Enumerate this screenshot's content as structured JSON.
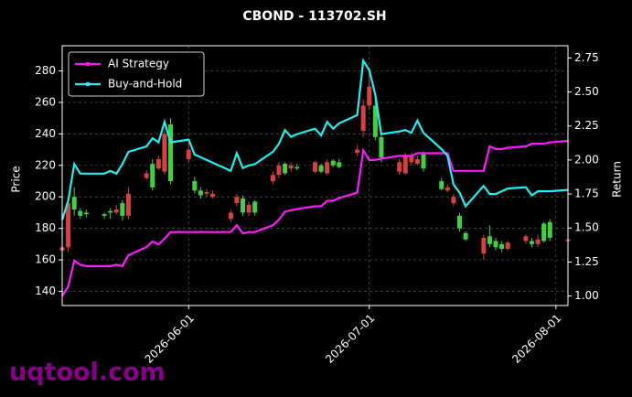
{
  "chart_data": {
    "type": "candlestick",
    "title": "CBOND - 113702.SH",
    "ylabel": "Price",
    "y2label": "Return",
    "watermark": "uqtool.com",
    "up_color": "#3fd13f",
    "down_color": "#d94040",
    "grid": true,
    "legend": "upper left",
    "x": [
      "2026-05-11",
      "2026-05-12",
      "2026-05-13",
      "2026-05-14",
      "2026-05-15",
      "2026-05-18",
      "2026-05-19",
      "2026-05-20",
      "2026-05-21",
      "2026-05-22",
      "2026-05-25",
      "2026-05-26",
      "2026-05-27",
      "2026-05-28",
      "2026-05-29",
      "2026-06-01",
      "2026-06-02",
      "2026-06-03",
      "2026-06-04",
      "2026-06-05",
      "2026-06-08",
      "2026-06-09",
      "2026-06-10",
      "2026-06-11",
      "2026-06-12",
      "2026-06-15",
      "2026-06-16",
      "2026-06-17",
      "2026-06-18",
      "2026-06-19",
      "2026-06-22",
      "2026-06-23",
      "2026-06-24",
      "2026-06-25",
      "2026-06-26",
      "2026-06-29",
      "2026-06-30",
      "2026-07-01",
      "2026-07-02",
      "2026-07-03",
      "2026-07-06",
      "2026-07-07",
      "2026-07-08",
      "2026-07-09",
      "2026-07-10",
      "2026-07-13",
      "2026-07-14",
      "2026-07-15",
      "2026-07-16",
      "2026-07-17",
      "2026-07-20",
      "2026-07-21",
      "2026-07-22",
      "2026-07-23",
      "2026-07-24",
      "2026-07-27",
      "2026-07-28",
      "2026-07-29",
      "2026-07-30",
      "2026-07-31",
      "2026-08-03"
    ],
    "open": [
      168,
      196,
      192,
      188,
      189,
      188,
      190,
      192,
      188,
      202,
      215,
      206,
      224,
      240,
      210,
      230,
      204,
      201,
      203,
      202,
      190,
      200,
      190,
      195,
      190,
      214,
      220,
      215,
      220,
      218,
      222,
      216,
      222,
      220,
      219,
      230,
      258,
      270,
      238,
      225,
      222,
      226,
      226,
      224,
      218,
      205,
      206,
      200,
      180,
      173,
      174,
      170,
      168,
      167,
      171,
      175,
      170,
      173,
      172,
      174,
      173
    ],
    "high": [
      171,
      198,
      206,
      193,
      192,
      190,
      193,
      195,
      198,
      206,
      217,
      224,
      226,
      242,
      250,
      235,
      213,
      206,
      205,
      204,
      192,
      202,
      201,
      197,
      198,
      216,
      222,
      222,
      222,
      221,
      223,
      221,
      224,
      224,
      224,
      233,
      262,
      282,
      262,
      240,
      224,
      228,
      228,
      226,
      229,
      212,
      208,
      202,
      190,
      178,
      176,
      182,
      174,
      172,
      172,
      176,
      174,
      176,
      184,
      186,
      174
    ],
    "low": [
      164,
      165,
      188,
      186,
      187,
      186,
      186,
      189,
      185,
      186,
      211,
      204,
      217,
      214,
      208,
      222,
      202,
      199,
      200,
      199,
      184,
      194,
      188,
      188,
      188,
      208,
      212,
      214,
      216,
      217,
      215,
      215,
      214,
      219,
      218,
      226,
      238,
      255,
      236,
      222,
      214,
      214,
      220,
      220,
      216,
      204,
      203,
      194,
      178,
      172,
      160,
      168,
      166,
      165,
      166,
      170,
      168,
      168,
      171,
      172,
      172
    ],
    "close": [
      166,
      168,
      200,
      191,
      190,
      189,
      191,
      190,
      196,
      188,
      212,
      221,
      218,
      216,
      246,
      224,
      210,
      204,
      202,
      200,
      186,
      196,
      199,
      190,
      197,
      210,
      214,
      221,
      218,
      219,
      216,
      220,
      215,
      223,
      222,
      228,
      242,
      258,
      258,
      238,
      216,
      215,
      222,
      221,
      227,
      210,
      204,
      196,
      188,
      177,
      164,
      175,
      172,
      170,
      167,
      172,
      172,
      170,
      183,
      184,
      172
    ],
    "series": [
      {
        "name": "AI Strategy",
        "color": "#ff1aff",
        "axis": "y2",
        "values": [
          1.0,
          1.07,
          1.26,
          1.23,
          1.22,
          1.22,
          1.22,
          1.23,
          1.22,
          1.3,
          1.36,
          1.4,
          1.38,
          1.42,
          1.47,
          1.47,
          1.47,
          1.47,
          1.47,
          1.47,
          1.47,
          1.52,
          1.46,
          1.47,
          1.47,
          1.52,
          1.56,
          1.62,
          1.63,
          1.64,
          1.66,
          1.66,
          1.7,
          1.7,
          1.72,
          1.76,
          2.07,
          2.0,
          2.0,
          2.01,
          2.03,
          2.03,
          2.03,
          2.05,
          2.05,
          2.05,
          2.05,
          1.92,
          1.92,
          1.92,
          1.92,
          2.1,
          2.08,
          2.08,
          2.09,
          2.1,
          2.12,
          2.12,
          2.12,
          2.13,
          2.14
        ]
      },
      {
        "name": "Buy-and-Hold",
        "color": "#1ff0f0",
        "axis": "y2",
        "values": [
          1.56,
          1.7,
          1.97,
          1.9,
          1.9,
          1.9,
          1.92,
          1.9,
          1.97,
          2.06,
          2.1,
          2.16,
          2.13,
          2.28,
          2.13,
          2.15,
          2.04,
          2.02,
          2.0,
          1.98,
          1.92,
          2.05,
          1.94,
          1.96,
          1.97,
          2.06,
          2.12,
          2.22,
          2.17,
          2.19,
          2.23,
          2.18,
          2.28,
          2.23,
          2.27,
          2.33,
          2.73,
          2.66,
          2.48,
          2.19,
          2.21,
          2.22,
          2.2,
          2.29,
          2.2,
          2.08,
          2.03,
          1.82,
          1.76,
          1.66,
          1.81,
          1.75,
          1.75,
          1.77,
          1.79,
          1.8,
          1.74,
          1.77,
          1.77,
          1.77,
          1.78
        ]
      }
    ],
    "xlim": [
      "2026-05-11",
      "2026-08-03"
    ],
    "xticks": [
      "2026-06-01",
      "2026-07-01",
      "2026-08-01"
    ],
    "ylim": [
      131,
      296
    ],
    "yticks": [
      140,
      160,
      180,
      200,
      220,
      240,
      260,
      280
    ],
    "y2lim": [
      0.93,
      2.84
    ],
    "y2ticks": [
      {
        "value": 1,
        "label": "1.00"
      },
      1.25,
      {
        "value": 1.5,
        "label": "1.50"
      },
      1.75,
      {
        "value": 2,
        "label": "2.00"
      },
      2.25,
      {
        "value": 2.5,
        "label": "2.50"
      },
      2.75
    ]
  }
}
